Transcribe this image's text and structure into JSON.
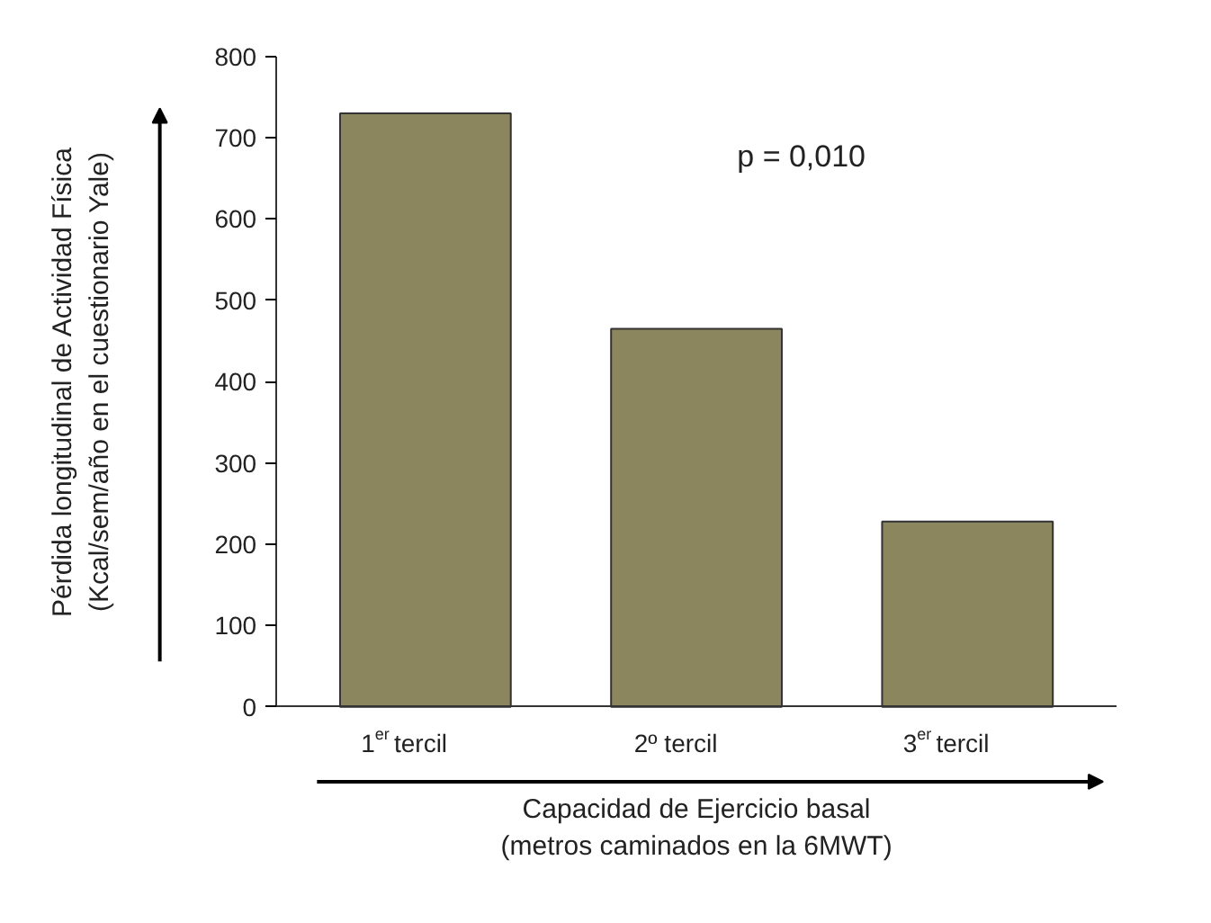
{
  "chart_data": {
    "type": "bar",
    "categories": [
      "1$^{er}$ tercil",
      "2º tercil",
      "3$^{er}$ tercil"
    ],
    "values": [
      730,
      465,
      228
    ],
    "color": "#8b865e",
    "ylim": [
      0,
      800
    ],
    "yticks": [
      0,
      100,
      200,
      300,
      400,
      500,
      600,
      700,
      800
    ],
    "grid": false,
    "ylabel": "Pérdida longitudinal de Actividad Física\n(Kcal/sem/año en el cuestionario Yale)",
    "xlabel": "Capacidad de Ejercicio basal\n(metros caminados en la 6MWT)",
    "annotations": [
      "p = 0,010"
    ]
  }
}
